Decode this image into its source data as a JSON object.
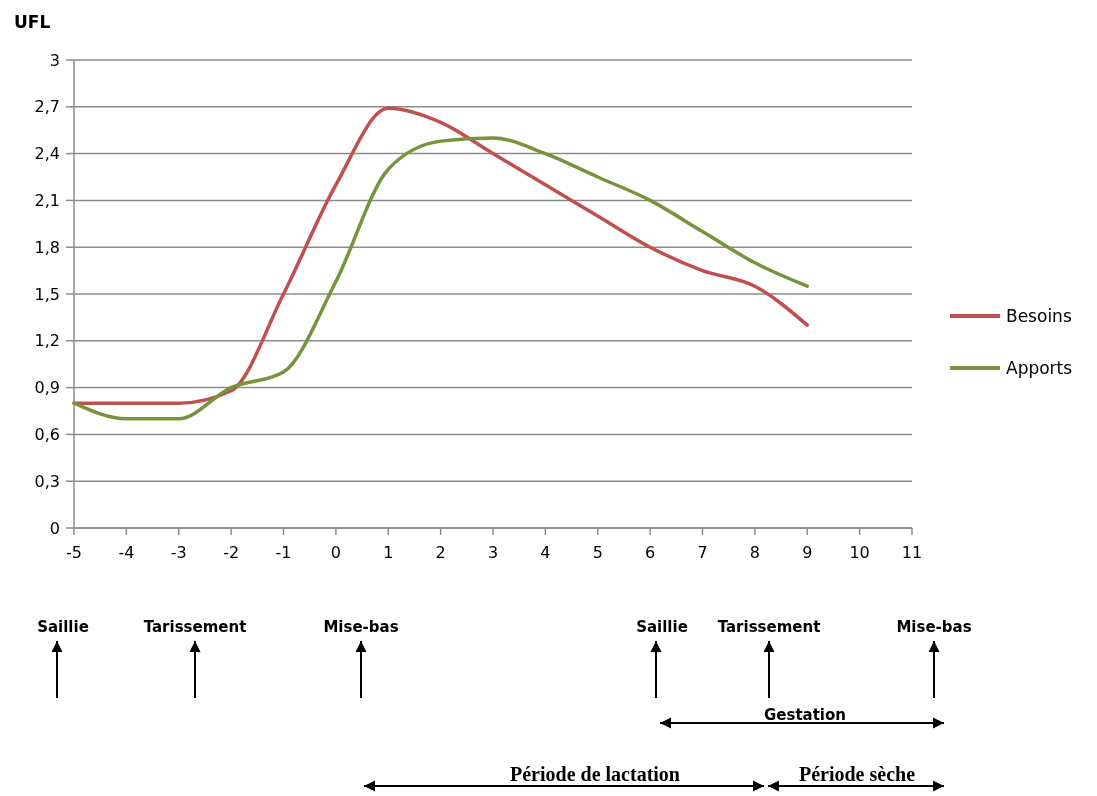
{
  "chart_data": {
    "type": "line",
    "ylabel": "UFL",
    "x": [
      -5,
      -4,
      -3,
      -2,
      -1,
      0,
      1,
      2,
      3,
      4,
      5,
      6,
      7,
      8,
      9
    ],
    "xlim": [
      -5,
      11
    ],
    "xticks": [
      -5,
      -4,
      -3,
      -2,
      -1,
      0,
      1,
      2,
      3,
      4,
      5,
      6,
      7,
      8,
      9,
      10,
      11
    ],
    "ylim": [
      0,
      3
    ],
    "yticks": [
      0,
      {
        "value": 0.3,
        "label": "0,3"
      },
      {
        "value": 0.6,
        "label": "0,6"
      },
      {
        "value": 0.9,
        "label": "0,9"
      },
      {
        "value": 1.2,
        "label": "1,2"
      },
      {
        "value": 1.5,
        "label": "1,5"
      },
      {
        "value": 1.8,
        "label": "1,8"
      },
      {
        "value": 2.1,
        "label": "2,1"
      },
      {
        "value": 2.4,
        "label": "2,4"
      },
      {
        "value": 2.7,
        "label": "2,7"
      },
      3
    ],
    "series": [
      {
        "name": "Besoins",
        "color": "#c0504d",
        "values": [
          0.8,
          0.8,
          0.8,
          0.88,
          1.5,
          2.2,
          2.69,
          2.6,
          2.4,
          2.2,
          2.0,
          1.8,
          1.65,
          1.55,
          1.3
        ]
      },
      {
        "name": "Apports",
        "color": "#77933c",
        "values": [
          0.8,
          0.7,
          0.7,
          0.9,
          1.0,
          1.58,
          2.3,
          2.48,
          2.5,
          2.4,
          2.25,
          2.1,
          1.9,
          1.7,
          1.55
        ]
      }
    ],
    "grid": "y",
    "legend": "right",
    "marker": "none",
    "line_style": "solid",
    "annotations": [
      "Saillie",
      "Tarissement",
      "Mise-bas",
      "Saillie",
      "Tarissement",
      "Mise-bas",
      "Gestation",
      "Période de lactation",
      "Période sèche"
    ]
  }
}
